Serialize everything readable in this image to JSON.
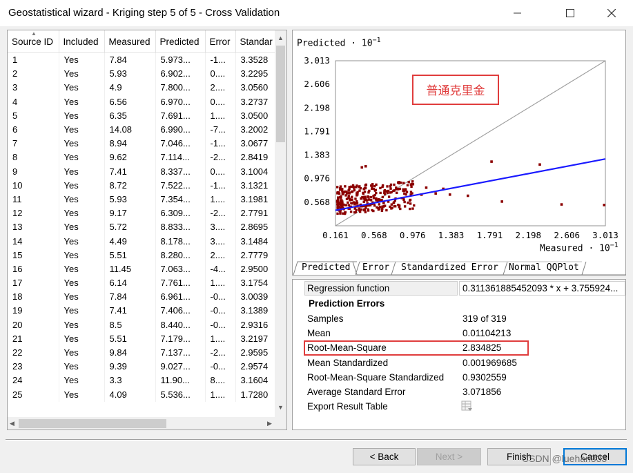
{
  "window": {
    "title": "Geostatistical wizard - Kriging step 5 of 5 - Cross Validation",
    "minimize_icon": "minimize-icon",
    "maximize_icon": "maximize-icon",
    "close_icon": "close-icon"
  },
  "table": {
    "columns": [
      "Source ID",
      "Included",
      "Measured",
      "Predicted",
      "Error",
      "Standar"
    ],
    "rows": [
      [
        "1",
        "Yes",
        "7.84",
        "5.973...",
        "-1...",
        "3.3528"
      ],
      [
        "2",
        "Yes",
        "5.93",
        "6.902...",
        "0....",
        "3.2295"
      ],
      [
        "3",
        "Yes",
        "4.9",
        "7.800...",
        "2....",
        "3.0560"
      ],
      [
        "4",
        "Yes",
        "6.56",
        "6.970...",
        "0....",
        "3.2737"
      ],
      [
        "5",
        "Yes",
        "6.35",
        "7.691...",
        "1....",
        "3.0500"
      ],
      [
        "6",
        "Yes",
        "14.08",
        "6.990...",
        "-7...",
        "3.2002"
      ],
      [
        "7",
        "Yes",
        "8.94",
        "7.046...",
        "-1...",
        "3.0677"
      ],
      [
        "8",
        "Yes",
        "9.62",
        "7.114...",
        "-2...",
        "2.8419"
      ],
      [
        "9",
        "Yes",
        "7.41",
        "8.337...",
        "0....",
        "3.1004"
      ],
      [
        "10",
        "Yes",
        "8.72",
        "7.522...",
        "-1...",
        "3.1321"
      ],
      [
        "11",
        "Yes",
        "5.93",
        "7.354...",
        "1....",
        "3.1981"
      ],
      [
        "12",
        "Yes",
        "9.17",
        "6.309...",
        "-2...",
        "2.7791"
      ],
      [
        "13",
        "Yes",
        "5.72",
        "8.833...",
        "3....",
        "2.8695"
      ],
      [
        "14",
        "Yes",
        "4.49",
        "8.178...",
        "3....",
        "3.1484"
      ],
      [
        "15",
        "Yes",
        "5.51",
        "8.280...",
        "2....",
        "2.7779"
      ],
      [
        "16",
        "Yes",
        "11.45",
        "7.063...",
        "-4...",
        "2.9500"
      ],
      [
        "17",
        "Yes",
        "6.14",
        "7.761...",
        "1....",
        "3.1754"
      ],
      [
        "18",
        "Yes",
        "7.84",
        "6.961...",
        "-0...",
        "3.0039"
      ],
      [
        "19",
        "Yes",
        "7.41",
        "7.406...",
        "-0...",
        "3.1389"
      ],
      [
        "20",
        "Yes",
        "8.5",
        "8.440...",
        "-0...",
        "2.9316"
      ],
      [
        "21",
        "Yes",
        "5.51",
        "7.179...",
        "1....",
        "3.2197"
      ],
      [
        "22",
        "Yes",
        "9.84",
        "7.137...",
        "-2...",
        "2.9595"
      ],
      [
        "23",
        "Yes",
        "9.39",
        "9.027...",
        "-0...",
        "2.9574"
      ],
      [
        "24",
        "Yes",
        "3.3",
        "11.90...",
        "8....",
        "3.1604"
      ],
      [
        "25",
        "Yes",
        "4.09",
        "5.536...",
        "1....",
        "1.7280"
      ]
    ],
    "sort_icon": "sort-ascending-icon"
  },
  "chart_data": {
    "type": "scatter",
    "ylabel": "Predicted",
    "xlabel": "Measured",
    "scale_note": "· 10",
    "scale_exponent": "−1",
    "x_ticks": [
      "0.161",
      "0.568",
      "0.976",
      "1.383",
      "1.791",
      "2.198",
      "2.606",
      "3.013"
    ],
    "y_ticks": [
      "3.013",
      "2.606",
      "2.198",
      "1.791",
      "1.383",
      "0.976",
      "0.568"
    ],
    "xlim": [
      0.161,
      3.013
    ],
    "ylim": [
      0.161,
      3.013
    ],
    "annotation": "普通克里金",
    "regression_line": {
      "x": [
        0.161,
        3.013
      ],
      "y": [
        0.428,
        1.316
      ],
      "color": "#1a1aff"
    },
    "reference_line": {
      "x": [
        0.161,
        3.013
      ],
      "y": [
        0.161,
        3.013
      ],
      "color": "#a0a0a0"
    },
    "point_color": "#8b0000",
    "outliers": [
      {
        "x": 0.48,
        "y": 1.19
      },
      {
        "x": 0.44,
        "y": 1.17
      },
      {
        "x": 1.56,
        "y": 0.68
      },
      {
        "x": 1.92,
        "y": 0.58
      },
      {
        "x": 1.81,
        "y": 1.27
      },
      {
        "x": 2.32,
        "y": 1.22
      },
      {
        "x": 2.55,
        "y": 0.53
      },
      {
        "x": 3.0,
        "y": 0.52
      },
      {
        "x": 1.12,
        "y": 0.82
      },
      {
        "x": 1.3,
        "y": 0.8
      },
      {
        "x": 1.22,
        "y": 0.72
      },
      {
        "x": 1.37,
        "y": 0.7
      },
      {
        "x": 1.07,
        "y": 0.7
      },
      {
        "x": 0.98,
        "y": 0.88
      }
    ]
  },
  "chart_tabs": [
    "Predicted",
    "Error",
    "Standardized Error",
    "Normal QQPlot"
  ],
  "properties": {
    "regression_label": "Regression function",
    "regression_value": "0.311361885452093 * x + 3.755924...",
    "section_title": "Prediction Errors",
    "rows": [
      {
        "label": "Samples",
        "value": "319 of 319"
      },
      {
        "label": "Mean",
        "value": "0.01104213"
      },
      {
        "label": "Root-Mean-Square",
        "value": "2.834825"
      },
      {
        "label": "Mean Standardized",
        "value": "0.001969685"
      },
      {
        "label": "Root-Mean-Square Standardized",
        "value": "0.9302559"
      },
      {
        "label": "Average Standard Error",
        "value": "3.071856"
      },
      {
        "label": "Export Result Table",
        "value": ""
      }
    ],
    "export_icon": "export-table-icon"
  },
  "buttons": {
    "back": "< Back",
    "next": "Next >",
    "finish": "Finish",
    "cancel": "Cancel"
  },
  "watermark": "CSDN @luehan333"
}
